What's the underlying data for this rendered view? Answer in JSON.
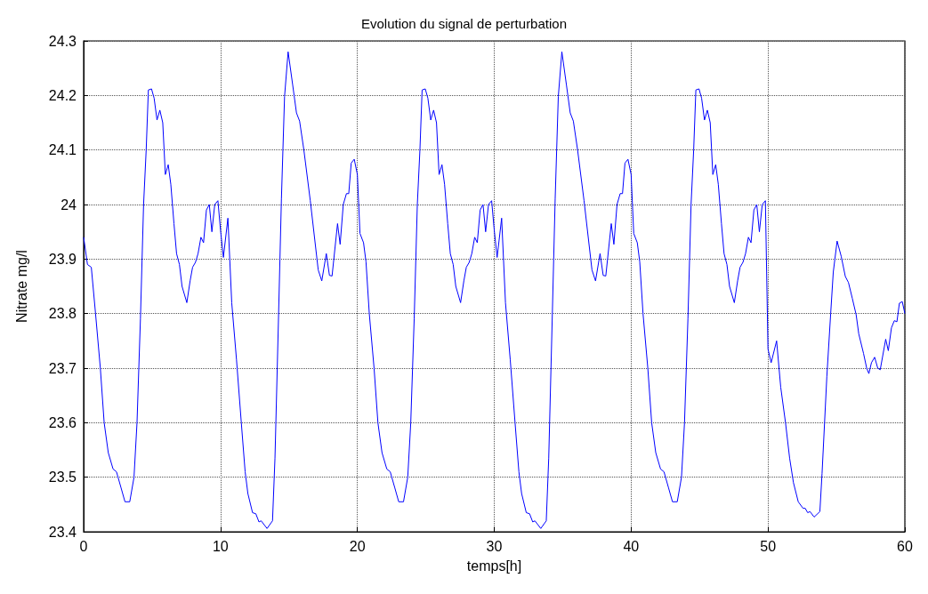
{
  "chart_data": {
    "type": "line",
    "title": "Evolution du signal de perturbation",
    "xlabel": "temps[h]",
    "ylabel": "Nitrate mg/l",
    "xlim": [
      0,
      60
    ],
    "xticks": [
      0,
      10,
      20,
      30,
      40,
      50,
      60
    ],
    "ylim": [
      23.4,
      24.3
    ],
    "yticks": [
      23.4,
      23.5,
      23.6,
      23.7,
      23.8,
      23.9,
      24,
      24.1,
      24.2,
      24.3
    ],
    "grid": true,
    "marker": "none",
    "line_style": "solid",
    "series": [
      {
        "color": "#0000ff",
        "x": [
          0,
          0.28,
          0.56,
          0.87,
          1.22,
          1.5,
          1.8,
          2.15,
          2.4,
          2.74,
          3.02,
          3.37,
          3.68,
          3.9,
          4.15,
          4.38,
          4.57,
          4.73,
          4.96,
          5.15,
          5.36,
          5.57,
          5.78,
          5.97,
          6.18,
          6.37,
          6.6,
          6.79,
          7.0,
          7.19,
          7.54,
          7.78,
          7.96,
          8.17,
          8.36,
          8.57,
          8.76,
          8.97,
          9.18,
          9.37,
          9.58,
          9.81,
          10.0,
          10.21,
          10.54,
          10.82,
          11.17,
          11.52,
          11.8,
          12.0,
          12.34,
          12.58,
          12.81,
          12.97,
          13.4,
          13.8,
          13.98,
          14.22,
          14.45,
          14.68,
          14.94,
          15.27,
          15.55,
          15.78,
          16.09,
          16.56,
          17.14,
          17.4,
          17.73,
          17.96,
          18.15,
          18.55,
          18.74,
          18.97,
          19.2,
          19.37,
          19.55,
          19.77,
          20.0,
          20.19,
          20.45,
          20.63,
          20.87,
          21.22,
          21.5,
          21.8,
          22.15,
          22.4,
          22.74,
          23.02,
          23.37,
          23.68,
          23.9,
          24.15,
          24.38,
          24.57,
          24.73,
          24.96,
          25.15,
          25.36,
          25.57,
          25.78,
          25.97,
          26.18,
          26.37,
          26.6,
          26.79,
          27.0,
          27.19,
          27.54,
          27.78,
          27.96,
          28.17,
          28.36,
          28.57,
          28.76,
          28.97,
          29.18,
          29.37,
          29.58,
          29.81,
          30.0,
          30.21,
          30.54,
          30.82,
          31.17,
          31.52,
          31.8,
          32.0,
          32.34,
          32.58,
          32.81,
          32.97,
          33.4,
          33.8,
          33.98,
          34.22,
          34.45,
          34.68,
          34.94,
          35.27,
          35.55,
          35.78,
          36.09,
          36.56,
          37.14,
          37.4,
          37.73,
          37.96,
          38.15,
          38.55,
          38.74,
          38.97,
          39.2,
          39.37,
          39.55,
          39.77,
          40.0,
          40.19,
          40.45,
          40.63,
          40.87,
          41.22,
          41.5,
          41.8,
          42.15,
          42.4,
          42.74,
          43.02,
          43.37,
          43.68,
          43.9,
          44.15,
          44.38,
          44.57,
          44.73,
          44.96,
          45.15,
          45.36,
          45.57,
          45.78,
          45.97,
          46.18,
          46.37,
          46.6,
          46.79,
          47.0,
          47.19,
          47.54,
          47.78,
          47.96,
          48.17,
          48.36,
          48.57,
          48.76,
          48.97,
          49.18,
          49.37,
          49.58,
          49.81,
          50.0,
          50.23,
          50.63,
          50.93,
          51.28,
          51.58,
          51.86,
          52.21,
          52.56,
          52.72,
          52.9,
          53.07,
          53.37,
          53.79,
          53.95,
          54.3,
          54.58,
          54.77,
          55.05,
          55.35,
          55.65,
          55.88,
          56.16,
          56.44,
          56.63,
          56.98,
          57.21,
          57.37,
          57.56,
          57.79,
          58.02,
          58.2,
          58.6,
          58.79,
          59.02,
          59.23,
          59.42,
          59.6,
          59.81,
          60.0
        ],
        "values": [
          23.94,
          23.89,
          23.885,
          23.8,
          23.7,
          23.6,
          23.545,
          23.515,
          23.51,
          23.48,
          23.455,
          23.455,
          23.5,
          23.6,
          23.79,
          24.0,
          24.1,
          24.21,
          24.212,
          24.195,
          24.155,
          24.173,
          24.15,
          24.055,
          24.073,
          24.037,
          23.965,
          23.91,
          23.89,
          23.85,
          23.82,
          23.86,
          23.885,
          23.894,
          23.91,
          23.94,
          23.93,
          23.99,
          24.0,
          23.95,
          24.0,
          24.007,
          23.953,
          23.903,
          23.975,
          23.82,
          23.715,
          23.6,
          23.51,
          23.47,
          23.435,
          23.433,
          23.418,
          23.42,
          23.406,
          23.42,
          23.535,
          23.775,
          24.01,
          24.198,
          24.28,
          24.22,
          24.168,
          24.153,
          24.1,
          24.007,
          23.88,
          23.86,
          23.91,
          23.87,
          23.869,
          23.965,
          23.927,
          24.0,
          24.02,
          24.02,
          24.076,
          24.083,
          24.055,
          23.947,
          23.93,
          23.895,
          23.8,
          23.7,
          23.6,
          23.545,
          23.515,
          23.51,
          23.48,
          23.455,
          23.455,
          23.5,
          23.6,
          23.79,
          24.0,
          24.1,
          24.21,
          24.212,
          24.195,
          24.155,
          24.173,
          24.15,
          24.055,
          24.073,
          24.037,
          23.965,
          23.91,
          23.89,
          23.85,
          23.82,
          23.86,
          23.885,
          23.894,
          23.91,
          23.94,
          23.93,
          23.99,
          24.0,
          23.95,
          24.0,
          24.007,
          23.953,
          23.903,
          23.975,
          23.82,
          23.715,
          23.6,
          23.51,
          23.47,
          23.435,
          23.433,
          23.418,
          23.42,
          23.406,
          23.42,
          23.535,
          23.775,
          24.01,
          24.198,
          24.28,
          24.22,
          24.168,
          24.153,
          24.1,
          24.007,
          23.88,
          23.86,
          23.91,
          23.87,
          23.869,
          23.965,
          23.927,
          24.0,
          24.02,
          24.02,
          24.076,
          24.083,
          24.055,
          23.947,
          23.93,
          23.895,
          23.8,
          23.7,
          23.6,
          23.545,
          23.515,
          23.51,
          23.48,
          23.455,
          23.455,
          23.5,
          23.6,
          23.79,
          24.0,
          24.1,
          24.21,
          24.212,
          24.195,
          24.155,
          24.173,
          24.15,
          24.055,
          24.073,
          24.037,
          23.965,
          23.91,
          23.89,
          23.85,
          23.82,
          23.86,
          23.885,
          23.894,
          23.91,
          23.94,
          23.93,
          23.99,
          24.0,
          23.95,
          24.0,
          24.007,
          23.735,
          23.71,
          23.75,
          23.665,
          23.6,
          23.535,
          23.49,
          23.455,
          23.443,
          23.443,
          23.435,
          23.437,
          23.427,
          23.437,
          23.507,
          23.685,
          23.8,
          23.876,
          23.933,
          23.905,
          23.868,
          23.857,
          23.828,
          23.798,
          23.763,
          23.727,
          23.7,
          23.69,
          23.71,
          23.72,
          23.7,
          23.697,
          23.753,
          23.732,
          23.774,
          23.787,
          23.785,
          23.819,
          23.822,
          23.8
        ]
      }
    ]
  }
}
